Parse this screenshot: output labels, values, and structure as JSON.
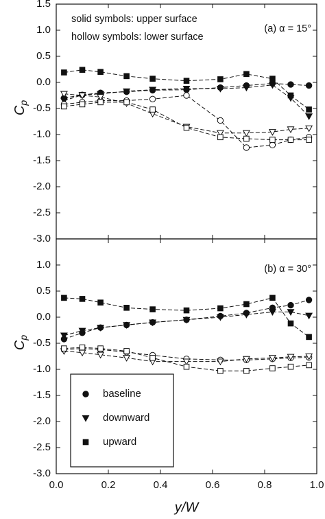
{
  "chart_data": [
    {
      "type": "line",
      "annotations": [
        "solid symbols: upper surface",
        "hollow symbols: lower surface",
        "(a) α = 15°"
      ],
      "y_label": "C",
      "y_label_sub": "p",
      "xlim": [
        0,
        1
      ],
      "ylim": [
        -3,
        1.5
      ],
      "yticks": [
        1.5,
        {
          "value": 1,
          "label": "1.0"
        },
        0.5,
        {
          "value": 0,
          "label": "0.0"
        },
        -0.5,
        {
          "value": -1,
          "label": "-1.0"
        },
        -1.5,
        {
          "value": -2,
          "label": "-2.0"
        },
        -2.5,
        {
          "value": -3,
          "label": "-3.0"
        }
      ],
      "x": [
        0.03,
        0.1,
        0.17,
        0.27,
        0.37,
        0.5,
        0.63,
        0.73,
        0.83,
        0.9,
        0.97
      ],
      "series": [
        {
          "name": "upward",
          "marker": "square",
          "filled": true,
          "color": "#111111",
          "values": [
            0.19,
            0.24,
            0.2,
            0.12,
            0.07,
            0.03,
            0.06,
            0.16,
            0.07,
            -0.25,
            -0.52
          ]
        },
        {
          "name": "baseline",
          "marker": "circle",
          "filled": true,
          "color": "#111111",
          "values": [
            -0.3,
            -0.24,
            -0.2,
            -0.18,
            -0.15,
            -0.14,
            -0.1,
            -0.06,
            -0.02,
            -0.04,
            -0.06
          ]
        },
        {
          "name": "downward",
          "marker": "triangle-down",
          "filled": true,
          "color": "#111111",
          "values": [
            -0.35,
            -0.24,
            -0.22,
            -0.17,
            -0.14,
            -0.12,
            -0.12,
            -0.1,
            -0.05,
            -0.3,
            -0.65
          ]
        },
        {
          "name": "baseline",
          "marker": "circle",
          "filled": false,
          "color": "#111111",
          "values": [
            -0.42,
            -0.38,
            -0.35,
            -0.35,
            -0.32,
            -0.25,
            -0.73,
            -1.25,
            -1.2,
            -1.1,
            -1.05
          ]
        },
        {
          "name": "downward",
          "marker": "triangle-down",
          "filled": false,
          "color": "#111111",
          "values": [
            -0.22,
            -0.25,
            -0.28,
            -0.4,
            -0.6,
            -0.85,
            -0.97,
            -0.97,
            -0.95,
            -0.9,
            -0.88
          ]
        },
        {
          "name": "upward",
          "marker": "square",
          "filled": false,
          "color": "#111111",
          "values": [
            -0.46,
            -0.42,
            -0.38,
            -0.38,
            -0.52,
            -0.87,
            -1.05,
            -1.08,
            -1.1,
            -1.1,
            -1.1
          ]
        }
      ]
    },
    {
      "type": "line",
      "annotations": [
        "(b) α = 30°"
      ],
      "y_label": "C",
      "y_label_sub": "p",
      "x_label": "y/W",
      "legend": "lower left",
      "xlim": [
        0,
        1
      ],
      "xticks": [
        {
          "value": 0,
          "label": "0.0"
        },
        0.2,
        0.4,
        0.6,
        0.8,
        {
          "value": 1,
          "label": "1.0"
        }
      ],
      "ylim": [
        -3,
        1.5
      ],
      "yticks": [
        {
          "value": 1,
          "label": "1.0"
        },
        0.5,
        {
          "value": 0,
          "label": "0.0"
        },
        -0.5,
        {
          "value": -1,
          "label": "-1.0"
        },
        -1.5,
        {
          "value": -2,
          "label": "-2.0"
        },
        -2.5,
        {
          "value": -3,
          "label": "-3.0"
        }
      ],
      "x": [
        0.03,
        0.1,
        0.17,
        0.27,
        0.37,
        0.5,
        0.63,
        0.73,
        0.83,
        0.9,
        0.97
      ],
      "series": [
        {
          "name": "baseline",
          "marker": "circle",
          "filled": true,
          "color": "#111111",
          "values": [
            -0.42,
            -0.3,
            -0.2,
            -0.15,
            -0.1,
            -0.05,
            0.02,
            0.08,
            0.18,
            0.23,
            0.33
          ]
        },
        {
          "name": "downward",
          "marker": "triangle-down",
          "filled": true,
          "color": "#111111",
          "values": [
            -0.35,
            -0.26,
            -0.2,
            -0.15,
            -0.1,
            -0.05,
            0.0,
            0.05,
            0.1,
            0.1,
            0.03
          ]
        },
        {
          "name": "upward",
          "marker": "square",
          "filled": true,
          "color": "#111111",
          "values": [
            0.37,
            0.35,
            0.28,
            0.18,
            0.15,
            0.13,
            0.17,
            0.25,
            0.37,
            -0.12,
            -0.38
          ]
        },
        {
          "name": "baseline",
          "marker": "circle",
          "filled": false,
          "color": "#111111",
          "values": [
            -0.62,
            -0.6,
            -0.62,
            -0.67,
            -0.73,
            -0.8,
            -0.82,
            -0.82,
            -0.8,
            -0.78,
            -0.77
          ]
        },
        {
          "name": "downward",
          "marker": "triangle-down",
          "filled": false,
          "color": "#111111",
          "values": [
            -0.65,
            -0.68,
            -0.72,
            -0.78,
            -0.85,
            -0.85,
            -0.85,
            -0.8,
            -0.78,
            -0.76,
            -0.75
          ]
        },
        {
          "name": "upward",
          "marker": "square",
          "filled": false,
          "color": "#111111",
          "values": [
            -0.6,
            -0.58,
            -0.6,
            -0.65,
            -0.78,
            -0.95,
            -1.03,
            -1.03,
            -0.98,
            -0.95,
            -0.92
          ]
        }
      ]
    }
  ]
}
